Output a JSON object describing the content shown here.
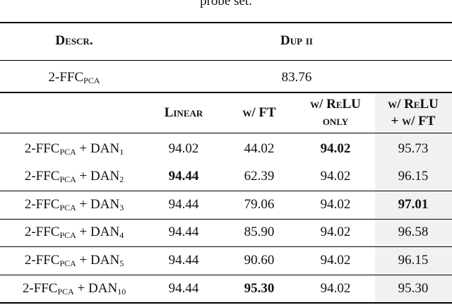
{
  "caption": "probe set.",
  "header": {
    "descr": "Descr.",
    "dup": "Dup ii"
  },
  "baseline": {
    "label": [
      "2-FFC",
      "PCA"
    ],
    "value": "83.76"
  },
  "columns": [
    [
      "Linear"
    ],
    [
      "w/ FT"
    ],
    [
      "w/ ReLU",
      "only"
    ],
    [
      "w/ ReLU",
      "+ w/ FT"
    ]
  ],
  "rows": [
    {
      "label": [
        "2-FFC",
        "PCA",
        " + DAN",
        "1"
      ],
      "values": [
        "94.02",
        "44.02",
        "94.02",
        "95.73"
      ],
      "bold": [
        2
      ]
    },
    {
      "label": [
        "2-FFC",
        "PCA",
        " + DAN",
        "2"
      ],
      "values": [
        "94.44",
        "62.39",
        "94.02",
        "96.15"
      ],
      "bold": [
        0
      ]
    },
    {
      "label": [
        "2-FFC",
        "PCA",
        " + DAN",
        "3"
      ],
      "values": [
        "94.44",
        "79.06",
        "94.02",
        "97.01"
      ],
      "bold": [
        3
      ]
    },
    {
      "label": [
        "2-FFC",
        "PCA",
        " + DAN",
        "4"
      ],
      "values": [
        "94.44",
        "85.90",
        "94.02",
        "96.58"
      ]
    },
    {
      "label": [
        "2-FFC",
        "PCA",
        " + DAN",
        "5"
      ],
      "values": [
        "94.44",
        "90.60",
        "94.02",
        "96.15"
      ]
    },
    {
      "label": [
        "2-FFC",
        "PCA",
        " + DAN",
        "10"
      ],
      "values": [
        "94.44",
        "95.30",
        "94.02",
        "95.30"
      ],
      "bold": [
        1
      ]
    }
  ]
}
